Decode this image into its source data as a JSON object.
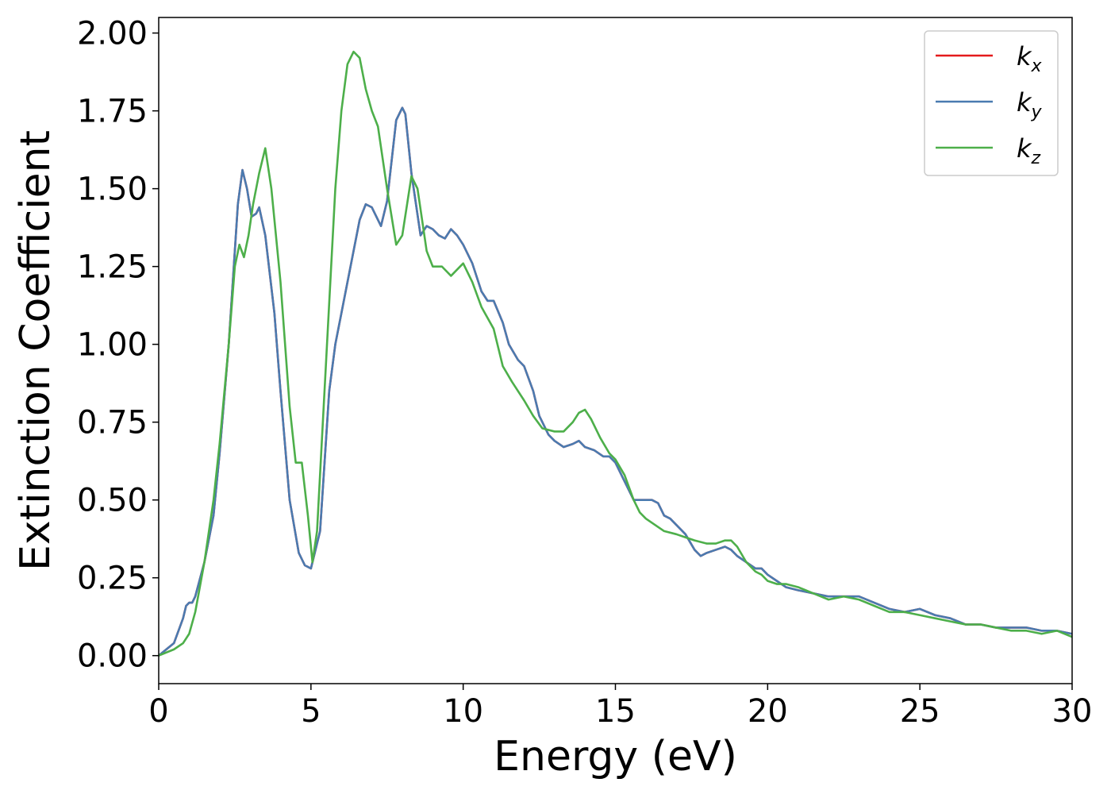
{
  "chart_data": {
    "type": "line",
    "title": "",
    "xlabel": "Energy (eV)",
    "ylabel": "Extinction Coefficient",
    "xlim": [
      0,
      30
    ],
    "ylim": [
      -0.09,
      2.05
    ],
    "xticks": [
      0,
      5,
      10,
      15,
      20,
      25,
      30
    ],
    "xtick_labels": [
      "0",
      "5",
      "10",
      "15",
      "20",
      "25",
      "30"
    ],
    "yticks": [
      0,
      0.25,
      0.5,
      0.75,
      1.0,
      1.25,
      1.5,
      1.75,
      2.0
    ],
    "ytick_labels": [
      "0.00",
      "0.25",
      "0.50",
      "0.75",
      "1.00",
      "1.25",
      "1.50",
      "1.75",
      "2.00"
    ],
    "grid": false,
    "legend_position": "top-right",
    "series": [
      {
        "name": "k",
        "subscript": "x",
        "color": "#e41a1c",
        "x": [
          0,
          0.5,
          0.8,
          0.9,
          1.0,
          1.1,
          1.2,
          1.5,
          1.8,
          2.0,
          2.3,
          2.6,
          2.75,
          2.9,
          3.05,
          3.2,
          3.3,
          3.5,
          3.8,
          4.0,
          4.3,
          4.6,
          4.8,
          5.0,
          5.3,
          5.6,
          5.8,
          6.0,
          6.3,
          6.6,
          6.8,
          7.0,
          7.3,
          7.5,
          7.8,
          8.0,
          8.1,
          8.3,
          8.6,
          8.8,
          9.0,
          9.2,
          9.4,
          9.6,
          9.8,
          10.0,
          10.3,
          10.6,
          10.8,
          11.0,
          11.3,
          11.5,
          11.8,
          12.0,
          12.3,
          12.5,
          12.8,
          13.0,
          13.3,
          13.6,
          13.8,
          14.0,
          14.3,
          14.6,
          14.8,
          15.0,
          15.3,
          15.6,
          15.8,
          16.0,
          16.2,
          16.4,
          16.6,
          16.8,
          17.0,
          17.3,
          17.6,
          17.8,
          18.0,
          18.3,
          18.6,
          18.8,
          19.0,
          19.3,
          19.6,
          19.8,
          20.0,
          20.3,
          20.6,
          21.0,
          21.5,
          22.0,
          22.5,
          23.0,
          23.5,
          24.0,
          24.5,
          25.0,
          25.5,
          26.0,
          26.5,
          27.0,
          27.5,
          28.0,
          28.5,
          29.0,
          29.5,
          30.0
        ],
        "y": [
          0.0,
          0.04,
          0.12,
          0.16,
          0.17,
          0.17,
          0.19,
          0.3,
          0.45,
          0.65,
          1.0,
          1.45,
          1.56,
          1.5,
          1.41,
          1.42,
          1.44,
          1.35,
          1.1,
          0.85,
          0.5,
          0.33,
          0.29,
          0.28,
          0.4,
          0.85,
          1.0,
          1.1,
          1.25,
          1.4,
          1.45,
          1.44,
          1.38,
          1.46,
          1.72,
          1.76,
          1.74,
          1.55,
          1.35,
          1.38,
          1.37,
          1.35,
          1.34,
          1.37,
          1.35,
          1.32,
          1.26,
          1.17,
          1.14,
          1.14,
          1.07,
          1.0,
          0.95,
          0.93,
          0.85,
          0.77,
          0.71,
          0.69,
          0.67,
          0.68,
          0.69,
          0.67,
          0.66,
          0.64,
          0.64,
          0.62,
          0.56,
          0.5,
          0.5,
          0.5,
          0.5,
          0.49,
          0.45,
          0.44,
          0.42,
          0.39,
          0.34,
          0.32,
          0.33,
          0.34,
          0.35,
          0.34,
          0.32,
          0.3,
          0.28,
          0.28,
          0.26,
          0.24,
          0.22,
          0.21,
          0.2,
          0.19,
          0.19,
          0.19,
          0.17,
          0.15,
          0.14,
          0.15,
          0.13,
          0.12,
          0.1,
          0.1,
          0.09,
          0.09,
          0.09,
          0.08,
          0.08,
          0.07
        ]
      },
      {
        "name": "k",
        "subscript": "y",
        "color": "#4a7bb0",
        "x": [
          0,
          0.5,
          0.8,
          0.9,
          1.0,
          1.1,
          1.2,
          1.5,
          1.8,
          2.0,
          2.3,
          2.6,
          2.75,
          2.9,
          3.05,
          3.2,
          3.3,
          3.5,
          3.8,
          4.0,
          4.3,
          4.6,
          4.8,
          5.0,
          5.3,
          5.6,
          5.8,
          6.0,
          6.3,
          6.6,
          6.8,
          7.0,
          7.3,
          7.5,
          7.8,
          8.0,
          8.1,
          8.3,
          8.6,
          8.8,
          9.0,
          9.2,
          9.4,
          9.6,
          9.8,
          10.0,
          10.3,
          10.6,
          10.8,
          11.0,
          11.3,
          11.5,
          11.8,
          12.0,
          12.3,
          12.5,
          12.8,
          13.0,
          13.3,
          13.6,
          13.8,
          14.0,
          14.3,
          14.6,
          14.8,
          15.0,
          15.3,
          15.6,
          15.8,
          16.0,
          16.2,
          16.4,
          16.6,
          16.8,
          17.0,
          17.3,
          17.6,
          17.8,
          18.0,
          18.3,
          18.6,
          18.8,
          19.0,
          19.3,
          19.6,
          19.8,
          20.0,
          20.3,
          20.6,
          21.0,
          21.5,
          22.0,
          22.5,
          23.0,
          23.5,
          24.0,
          24.5,
          25.0,
          25.5,
          26.0,
          26.5,
          27.0,
          27.5,
          28.0,
          28.5,
          29.0,
          29.5,
          30.0
        ],
        "y": [
          0.0,
          0.04,
          0.12,
          0.16,
          0.17,
          0.17,
          0.19,
          0.3,
          0.45,
          0.65,
          1.0,
          1.45,
          1.56,
          1.5,
          1.41,
          1.42,
          1.44,
          1.35,
          1.1,
          0.85,
          0.5,
          0.33,
          0.29,
          0.28,
          0.4,
          0.85,
          1.0,
          1.1,
          1.25,
          1.4,
          1.45,
          1.44,
          1.38,
          1.46,
          1.72,
          1.76,
          1.74,
          1.55,
          1.35,
          1.38,
          1.37,
          1.35,
          1.34,
          1.37,
          1.35,
          1.32,
          1.26,
          1.17,
          1.14,
          1.14,
          1.07,
          1.0,
          0.95,
          0.93,
          0.85,
          0.77,
          0.71,
          0.69,
          0.67,
          0.68,
          0.69,
          0.67,
          0.66,
          0.64,
          0.64,
          0.62,
          0.56,
          0.5,
          0.5,
          0.5,
          0.5,
          0.49,
          0.45,
          0.44,
          0.42,
          0.39,
          0.34,
          0.32,
          0.33,
          0.34,
          0.35,
          0.34,
          0.32,
          0.3,
          0.28,
          0.28,
          0.26,
          0.24,
          0.22,
          0.21,
          0.2,
          0.19,
          0.19,
          0.19,
          0.17,
          0.15,
          0.14,
          0.15,
          0.13,
          0.12,
          0.1,
          0.1,
          0.09,
          0.09,
          0.09,
          0.08,
          0.08,
          0.07
        ]
      },
      {
        "name": "k",
        "subscript": "z",
        "color": "#4daf4a",
        "x": [
          0,
          0.5,
          0.8,
          1.0,
          1.2,
          1.5,
          1.8,
          2.0,
          2.3,
          2.5,
          2.65,
          2.8,
          2.95,
          3.1,
          3.3,
          3.5,
          3.7,
          4.0,
          4.3,
          4.5,
          4.7,
          4.9,
          5.05,
          5.2,
          5.5,
          5.8,
          6.0,
          6.2,
          6.4,
          6.6,
          6.8,
          7.0,
          7.2,
          7.5,
          7.8,
          8.0,
          8.3,
          8.5,
          8.8,
          9.0,
          9.3,
          9.6,
          10.0,
          10.3,
          10.6,
          11.0,
          11.3,
          11.6,
          12.0,
          12.3,
          12.6,
          13.0,
          13.3,
          13.6,
          13.8,
          14.0,
          14.2,
          14.5,
          14.8,
          15.0,
          15.3,
          15.6,
          15.8,
          16.0,
          16.3,
          16.6,
          17.0,
          17.3,
          17.6,
          18.0,
          18.3,
          18.6,
          18.8,
          19.0,
          19.3,
          19.6,
          19.8,
          20.0,
          20.3,
          20.6,
          21.0,
          21.5,
          22.0,
          22.5,
          23.0,
          23.5,
          24.0,
          24.5,
          25.0,
          25.5,
          26.0,
          26.5,
          27.0,
          27.5,
          28.0,
          28.5,
          29.0,
          29.5,
          30.0
        ],
        "y": [
          0.0,
          0.02,
          0.04,
          0.07,
          0.14,
          0.3,
          0.5,
          0.68,
          1.0,
          1.25,
          1.32,
          1.28,
          1.35,
          1.45,
          1.55,
          1.63,
          1.5,
          1.2,
          0.8,
          0.62,
          0.62,
          0.45,
          0.3,
          0.4,
          0.95,
          1.5,
          1.75,
          1.9,
          1.94,
          1.92,
          1.82,
          1.75,
          1.7,
          1.5,
          1.32,
          1.35,
          1.54,
          1.5,
          1.3,
          1.25,
          1.25,
          1.22,
          1.26,
          1.2,
          1.12,
          1.05,
          0.93,
          0.88,
          0.82,
          0.77,
          0.73,
          0.72,
          0.72,
          0.75,
          0.78,
          0.79,
          0.76,
          0.7,
          0.65,
          0.63,
          0.58,
          0.5,
          0.46,
          0.44,
          0.42,
          0.4,
          0.39,
          0.38,
          0.37,
          0.36,
          0.36,
          0.37,
          0.37,
          0.35,
          0.3,
          0.27,
          0.26,
          0.24,
          0.23,
          0.23,
          0.22,
          0.2,
          0.18,
          0.19,
          0.18,
          0.16,
          0.14,
          0.14,
          0.13,
          0.12,
          0.11,
          0.1,
          0.1,
          0.09,
          0.08,
          0.08,
          0.07,
          0.08,
          0.06
        ]
      }
    ]
  }
}
